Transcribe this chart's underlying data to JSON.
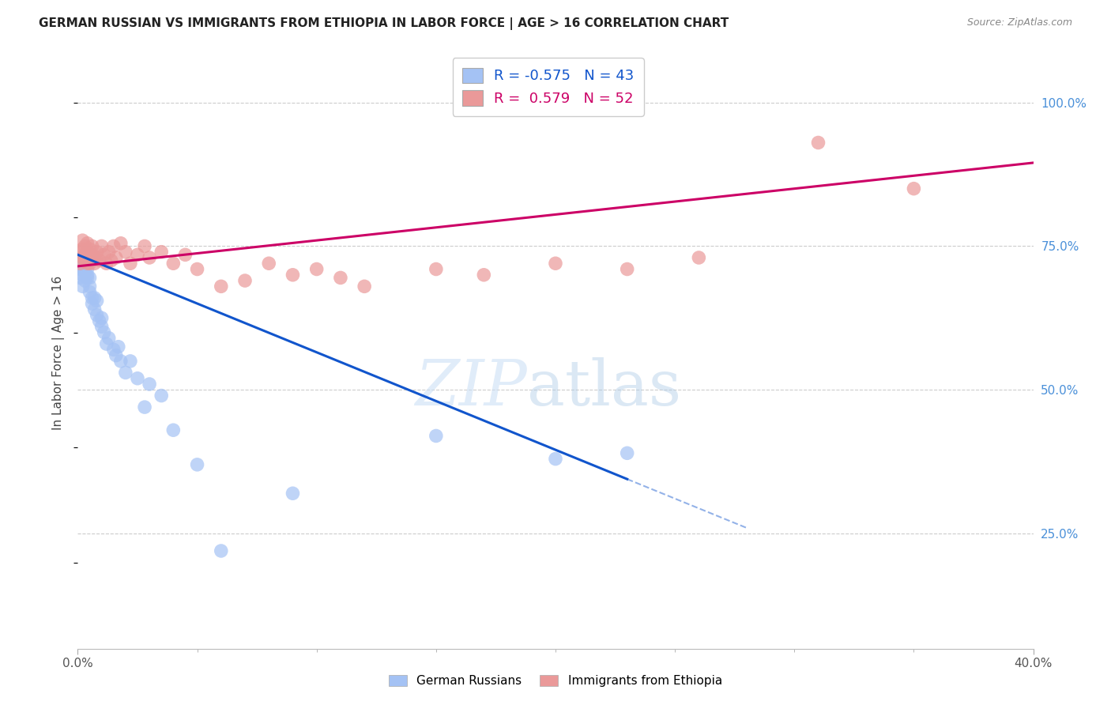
{
  "title": "GERMAN RUSSIAN VS IMMIGRANTS FROM ETHIOPIA IN LABOR FORCE | AGE > 16 CORRELATION CHART",
  "source": "Source: ZipAtlas.com",
  "ylabel": "In Labor Force | Age > 16",
  "ylabel_right_labels": [
    "100.0%",
    "75.0%",
    "50.0%",
    "25.0%"
  ],
  "ylabel_right_values": [
    1.0,
    0.75,
    0.5,
    0.25
  ],
  "xlim": [
    0.0,
    0.4
  ],
  "ylim": [
    0.05,
    1.08
  ],
  "blue_R": -0.575,
  "blue_N": 43,
  "pink_R": 0.579,
  "pink_N": 52,
  "blue_color": "#a4c2f4",
  "pink_color": "#ea9999",
  "blue_line_color": "#1155cc",
  "pink_line_color": "#cc0066",
  "legend_label_blue": "German Russians",
  "legend_label_pink": "Immigrants from Ethiopia",
  "blue_points_x": [
    0.001,
    0.001,
    0.002,
    0.002,
    0.002,
    0.003,
    0.003,
    0.003,
    0.004,
    0.004,
    0.004,
    0.005,
    0.005,
    0.005,
    0.006,
    0.006,
    0.007,
    0.007,
    0.008,
    0.008,
    0.009,
    0.01,
    0.01,
    0.011,
    0.012,
    0.013,
    0.015,
    0.016,
    0.017,
    0.018,
    0.02,
    0.022,
    0.025,
    0.028,
    0.03,
    0.035,
    0.04,
    0.05,
    0.06,
    0.09,
    0.15,
    0.2,
    0.23
  ],
  "blue_points_y": [
    0.695,
    0.71,
    0.7,
    0.715,
    0.68,
    0.705,
    0.69,
    0.72,
    0.7,
    0.71,
    0.695,
    0.695,
    0.67,
    0.68,
    0.66,
    0.65,
    0.66,
    0.64,
    0.655,
    0.63,
    0.62,
    0.61,
    0.625,
    0.6,
    0.58,
    0.59,
    0.57,
    0.56,
    0.575,
    0.55,
    0.53,
    0.55,
    0.52,
    0.47,
    0.51,
    0.49,
    0.43,
    0.37,
    0.22,
    0.32,
    0.42,
    0.38,
    0.39
  ],
  "pink_points_x": [
    0.001,
    0.001,
    0.002,
    0.002,
    0.002,
    0.003,
    0.003,
    0.003,
    0.004,
    0.004,
    0.004,
    0.005,
    0.005,
    0.005,
    0.006,
    0.006,
    0.007,
    0.007,
    0.008,
    0.008,
    0.009,
    0.01,
    0.011,
    0.012,
    0.013,
    0.014,
    0.015,
    0.016,
    0.018,
    0.02,
    0.022,
    0.025,
    0.028,
    0.03,
    0.035,
    0.04,
    0.045,
    0.05,
    0.06,
    0.07,
    0.08,
    0.09,
    0.1,
    0.11,
    0.12,
    0.15,
    0.17,
    0.2,
    0.23,
    0.26,
    0.31,
    0.35
  ],
  "pink_points_y": [
    0.72,
    0.74,
    0.73,
    0.745,
    0.76,
    0.735,
    0.725,
    0.75,
    0.74,
    0.755,
    0.72,
    0.73,
    0.745,
    0.72,
    0.735,
    0.75,
    0.73,
    0.72,
    0.74,
    0.73,
    0.725,
    0.75,
    0.735,
    0.72,
    0.74,
    0.725,
    0.75,
    0.73,
    0.755,
    0.74,
    0.72,
    0.735,
    0.75,
    0.73,
    0.74,
    0.72,
    0.735,
    0.71,
    0.68,
    0.69,
    0.72,
    0.7,
    0.71,
    0.695,
    0.68,
    0.71,
    0.7,
    0.72,
    0.71,
    0.73,
    0.93,
    0.85
  ],
  "blue_line_x0": 0.0,
  "blue_line_y0": 0.735,
  "blue_line_x1": 0.28,
  "blue_line_y1": 0.26,
  "blue_line_solid_end": 0.23,
  "pink_line_x0": 0.0,
  "pink_line_y0": 0.715,
  "pink_line_x1": 0.4,
  "pink_line_y1": 0.895
}
